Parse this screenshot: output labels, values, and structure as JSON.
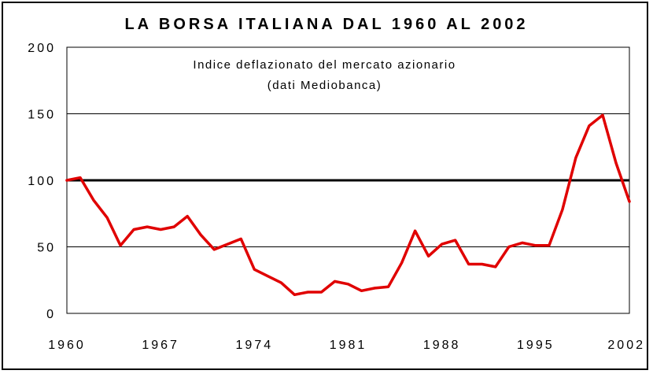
{
  "chart_data": {
    "type": "line",
    "title": "LA BORSA ITALIANA DAL 1960 AL 2002",
    "annotation": [
      "Indice deflazionato del mercato azionario",
      "(dati Mediobanca)"
    ],
    "xlabel": "",
    "ylabel": "",
    "xlim": [
      1960,
      2002
    ],
    "ylim": [
      0,
      200
    ],
    "x_ticks": [
      "1960",
      "1967",
      "1974",
      "1981",
      "1988",
      "1995",
      "2002"
    ],
    "y_ticks": [
      "0",
      "50",
      "100",
      "150",
      "200"
    ],
    "reference_line": 100,
    "grid": true,
    "legend": "none",
    "line_color": "#e00000",
    "series": [
      {
        "x": [
          1960,
          1961,
          1962,
          1963,
          1964,
          1965,
          1966,
          1967,
          1968,
          1969,
          1970,
          1971,
          1972,
          1973,
          1974,
          1975,
          1976,
          1977,
          1978,
          1979,
          1980,
          1981,
          1982,
          1983,
          1984,
          1985,
          1986,
          1987,
          1988,
          1989,
          1990,
          1991,
          1992,
          1993,
          1994,
          1995,
          1996,
          1997,
          1998,
          1999,
          2000,
          2001,
          2002
        ],
        "values": [
          100,
          102,
          85,
          72,
          51,
          63,
          65,
          63,
          65,
          73,
          59,
          48,
          52,
          56,
          33,
          28,
          23,
          14,
          16,
          16,
          24,
          22,
          17,
          19,
          20,
          38,
          62,
          43,
          52,
          55,
          37,
          37,
          35,
          50,
          53,
          51,
          51,
          78,
          117,
          141,
          149,
          113,
          84
        ]
      }
    ]
  }
}
